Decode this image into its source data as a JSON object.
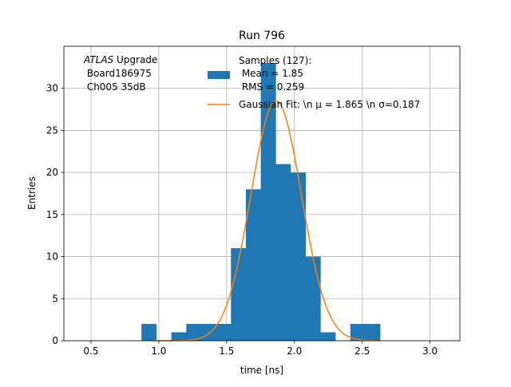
{
  "chart_data": {
    "type": "histogram",
    "title": "Run 796",
    "xlabel": "time [ns]",
    "ylabel": "Entries",
    "xlim": [
      0.3,
      3.22
    ],
    "ylim": [
      0,
      35
    ],
    "grid": true,
    "x_ticks": [
      "0.5",
      "1.0",
      "1.5",
      "2.0",
      "2.5",
      "3.0"
    ],
    "y_ticks": [
      "0",
      "5",
      "10",
      "15",
      "20",
      "25",
      "30"
    ],
    "bins": [
      {
        "start": 0.872,
        "end": 0.982,
        "count": 2
      },
      {
        "start": 0.982,
        "end": 1.092,
        "count": 0
      },
      {
        "start": 1.092,
        "end": 1.202,
        "count": 1
      },
      {
        "start": 1.202,
        "end": 1.312,
        "count": 2
      },
      {
        "start": 1.312,
        "end": 1.422,
        "count": 2
      },
      {
        "start": 1.422,
        "end": 1.532,
        "count": 2
      },
      {
        "start": 1.532,
        "end": 1.642,
        "count": 11
      },
      {
        "start": 1.642,
        "end": 1.752,
        "count": 18
      },
      {
        "start": 1.752,
        "end": 1.862,
        "count": 33
      },
      {
        "start": 1.862,
        "end": 1.972,
        "count": 21
      },
      {
        "start": 1.972,
        "end": 2.082,
        "count": 20
      },
      {
        "start": 2.082,
        "end": 2.192,
        "count": 10
      },
      {
        "start": 2.192,
        "end": 2.302,
        "count": 1
      },
      {
        "start": 2.302,
        "end": 2.412,
        "count": 0
      },
      {
        "start": 2.412,
        "end": 2.522,
        "count": 2
      },
      {
        "start": 2.522,
        "end": 2.632,
        "count": 2
      }
    ],
    "fit": {
      "type": "gaussian",
      "mu": 1.865,
      "sigma": 0.187,
      "amplitude": 28.5,
      "x_range": [
        0.95,
        2.62
      ]
    },
    "annotation_lines": [
      "ATLAS Upgrade",
      " Board186975",
      " Ch005 35dB"
    ],
    "annotation_italic_word": "ATLAS",
    "annotation_rest_first_line": " Upgrade",
    "legend_position": "top-right",
    "legend": {
      "hist_lines": [
        "Samples (127):",
        " Mean = 1.85",
        " RMS = 0.259"
      ],
      "fit_label": "Gaussian Fit: \\n μ = 1.865 \\n σ=0.187"
    },
    "colors": {
      "hist": "#1f77b4",
      "fit": "#ff7f0e",
      "grid": "#b0b0b0"
    }
  }
}
